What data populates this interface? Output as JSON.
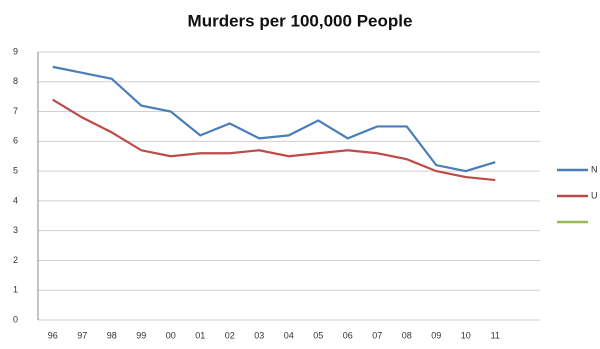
{
  "chart_data": {
    "type": "line",
    "title": "Murders per 100,000 People",
    "categories": [
      "96",
      "97",
      "98",
      "99",
      "00",
      "01",
      "02",
      "03",
      "04",
      "05",
      "06",
      "07",
      "08",
      "09",
      "10",
      "11"
    ],
    "series": [
      {
        "name": "N",
        "color": "#4a7ebb",
        "values": [
          8.5,
          8.3,
          8.1,
          7.2,
          7.0,
          6.2,
          6.6,
          6.1,
          6.2,
          6.7,
          6.1,
          6.5,
          6.5,
          5.2,
          5.0,
          5.3
        ]
      },
      {
        "name": "U",
        "color": "#be4b48",
        "values": [
          7.4,
          6.8,
          6.3,
          5.7,
          5.5,
          5.6,
          5.6,
          5.7,
          5.5,
          5.6,
          5.7,
          5.6,
          5.4,
          5.0,
          4.8,
          4.7
        ]
      },
      {
        "color": "#98b954",
        "values": [
          null,
          null,
          null,
          null,
          null,
          null,
          null,
          null,
          null,
          null,
          null,
          null,
          null,
          null,
          null,
          null
        ]
      }
    ],
    "ylim": [
      0,
      9
    ],
    "yticks": [
      0,
      1,
      2,
      3,
      4,
      5,
      6,
      7,
      8,
      9
    ],
    "grid": true
  }
}
